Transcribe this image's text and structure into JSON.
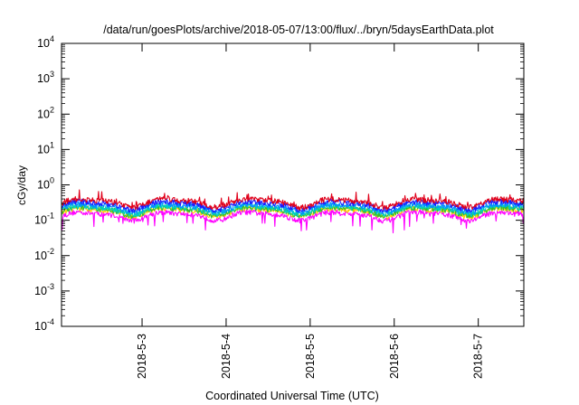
{
  "chart_data": {
    "type": "line",
    "title": "/data/run/goesPlots/archive/2018-05-07/13:00/flux/../bryn/5daysEarthData.plot",
    "xlabel": "Coordinated Universal Time (UTC)",
    "ylabel": "cGy/day",
    "yscale": "log",
    "ylim": [
      0.0001,
      10000
    ],
    "y_ticks": [
      {
        "value": 0.0001,
        "base": "10",
        "exp": "-4"
      },
      {
        "value": 0.001,
        "base": "10",
        "exp": "-3"
      },
      {
        "value": 0.01,
        "base": "10",
        "exp": "-2"
      },
      {
        "value": 0.1,
        "base": "10",
        "exp": "-1"
      },
      {
        "value": 1,
        "base": "10",
        "exp": "0"
      },
      {
        "value": 10,
        "base": "10",
        "exp": "1"
      },
      {
        "value": 100,
        "base": "10",
        "exp": "2"
      },
      {
        "value": 1000,
        "base": "10",
        "exp": "3"
      },
      {
        "value": 10000,
        "base": "10",
        "exp": "4"
      }
    ],
    "xlim": [
      "2018-05-02 01:00",
      "2018-05-07 13:00"
    ],
    "x_ticks": [
      {
        "date": "2018-05-03",
        "label": "2018-5-3"
      },
      {
        "date": "2018-05-04",
        "label": "2018-5-4"
      },
      {
        "date": "2018-05-05",
        "label": "2018-5-5"
      },
      {
        "date": "2018-05-06",
        "label": "2018-5-6"
      },
      {
        "date": "2018-05-07",
        "label": "2018-5-7"
      }
    ],
    "grid": false,
    "legend": "none",
    "series": [
      {
        "color": "#e0001a",
        "typical_value": 0.33
      },
      {
        "color": "#1a1aff",
        "typical_value": 0.28
      },
      {
        "color": "#0090ff",
        "typical_value": 0.24
      },
      {
        "color": "#00d0c0",
        "typical_value": 0.21
      },
      {
        "color": "#30c030",
        "typical_value": 0.19
      },
      {
        "color": "#ffd000",
        "typical_value": 0.18
      },
      {
        "color": "#ff00ff",
        "typical_value": 0.14
      }
    ]
  }
}
